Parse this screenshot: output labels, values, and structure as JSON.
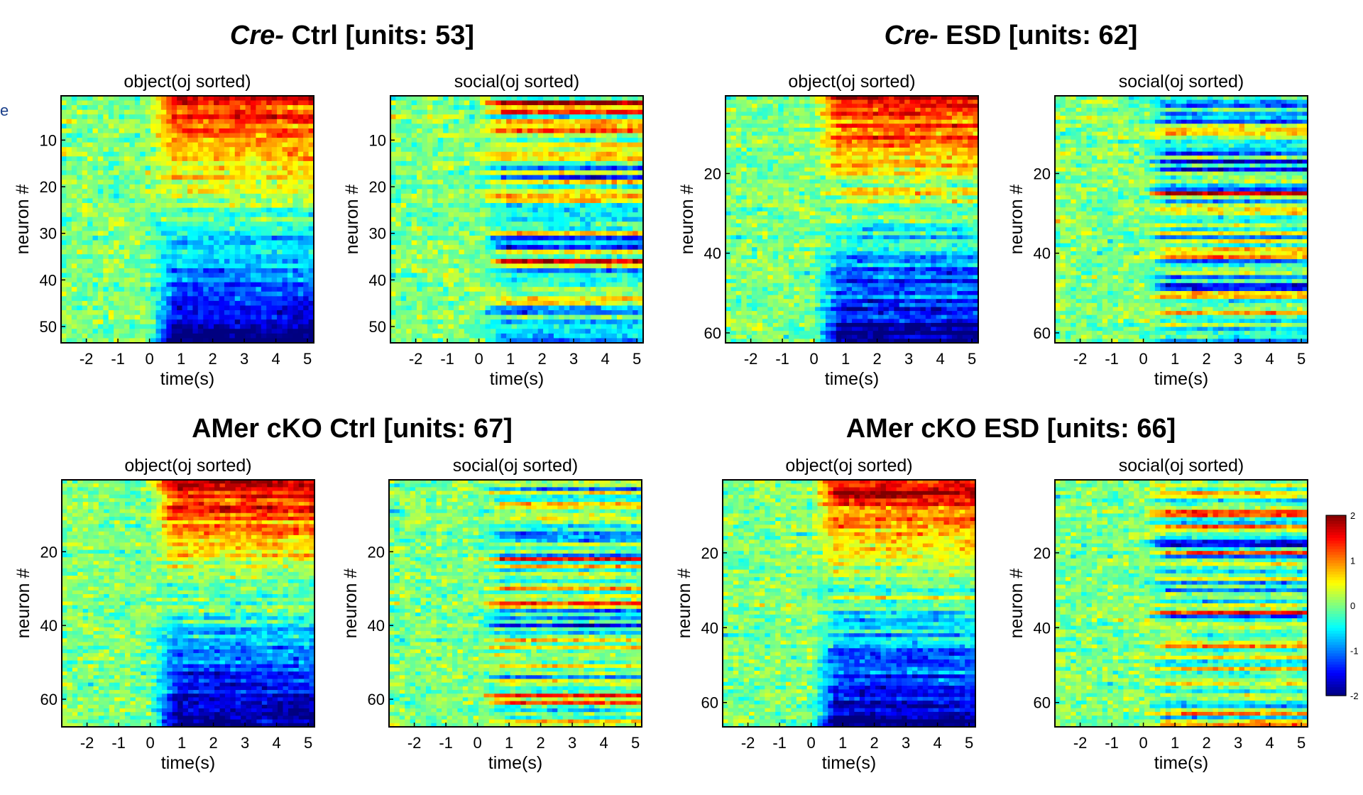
{
  "edge_fragment": "e",
  "chart_data": {
    "type": "heatmap",
    "colormap": "jet",
    "colorbar": {
      "range": [
        -2,
        2
      ],
      "ticks": [
        "2",
        "1",
        "0",
        "-1",
        "-2"
      ]
    },
    "x_axis": {
      "label": "time(s)",
      "range": [
        -2.8,
        5.2
      ],
      "ticks": [
        "-2",
        "-1",
        "0",
        "1",
        "2",
        "3",
        "4",
        "5"
      ]
    },
    "y_label": "neuron #",
    "groups": [
      {
        "italic": "Cre-",
        "title": " Ctrl [units: 53]",
        "units": 53,
        "y_ticks": [
          "10",
          "20",
          "30",
          "40",
          "50"
        ],
        "panels": [
          {
            "title": "object(oj sorted)",
            "kind": "object",
            "seed": 11
          },
          {
            "title": "social(oj sorted)",
            "kind": "social",
            "seed": 12
          }
        ]
      },
      {
        "italic": "Cre-",
        "title": " ESD [units: 62]",
        "units": 62,
        "y_ticks": [
          "20",
          "40",
          "60"
        ],
        "panels": [
          {
            "title": "object(oj sorted)",
            "kind": "object",
            "seed": 21
          },
          {
            "title": "social(oj sorted)",
            "kind": "social",
            "seed": 22
          }
        ]
      },
      {
        "italic": "",
        "title": "AMer cKO Ctrl [units: 67]",
        "units": 67,
        "y_ticks": [
          "20",
          "40",
          "60"
        ],
        "panels": [
          {
            "title": "object(oj sorted)",
            "kind": "object",
            "seed": 31
          },
          {
            "title": "social(oj sorted)",
            "kind": "social",
            "seed": 32
          }
        ]
      },
      {
        "italic": "",
        "title": "AMer cKO ESD [units: 66]",
        "units": 66,
        "y_ticks": [
          "20",
          "40",
          "60"
        ],
        "panels": [
          {
            "title": "object(oj sorted)",
            "kind": "object",
            "seed": 41
          },
          {
            "title": "social(oj sorted)",
            "kind": "social",
            "seed": 42
          }
        ]
      }
    ]
  }
}
